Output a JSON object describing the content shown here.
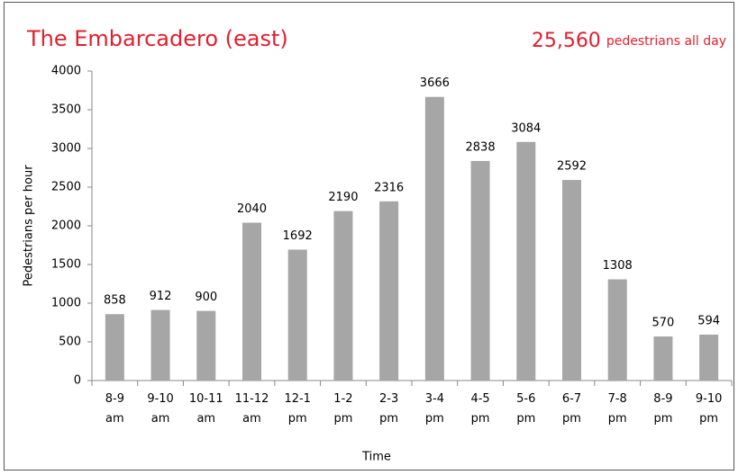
{
  "chart_data": {
    "type": "bar",
    "title": "The Embarcadero (east)",
    "annotation": {
      "number": "25,560",
      "text": "pedestrians all day"
    },
    "x_label": "Time",
    "y_label": "Pedestrians per hour",
    "categories": [
      "8-9 am",
      "9-10 am",
      "10-11 am",
      "11-12 am",
      "12-1 pm",
      "1-2 pm",
      "2-3 pm",
      "3-4 pm",
      "4-5 pm",
      "5-6 pm",
      "6-7 pm",
      "7-8 pm",
      "8-9 pm",
      "9-10 pm"
    ],
    "values": [
      858,
      912,
      900,
      2040,
      1692,
      2190,
      2316,
      3666,
      2838,
      3084,
      2592,
      1308,
      570,
      594
    ],
    "color": "#a6a6a6",
    "ylim": [
      0,
      4000
    ],
    "yticks": [
      0,
      500,
      1000,
      1500,
      2000,
      2500,
      3000,
      3500,
      4000
    ],
    "grid": false
  }
}
